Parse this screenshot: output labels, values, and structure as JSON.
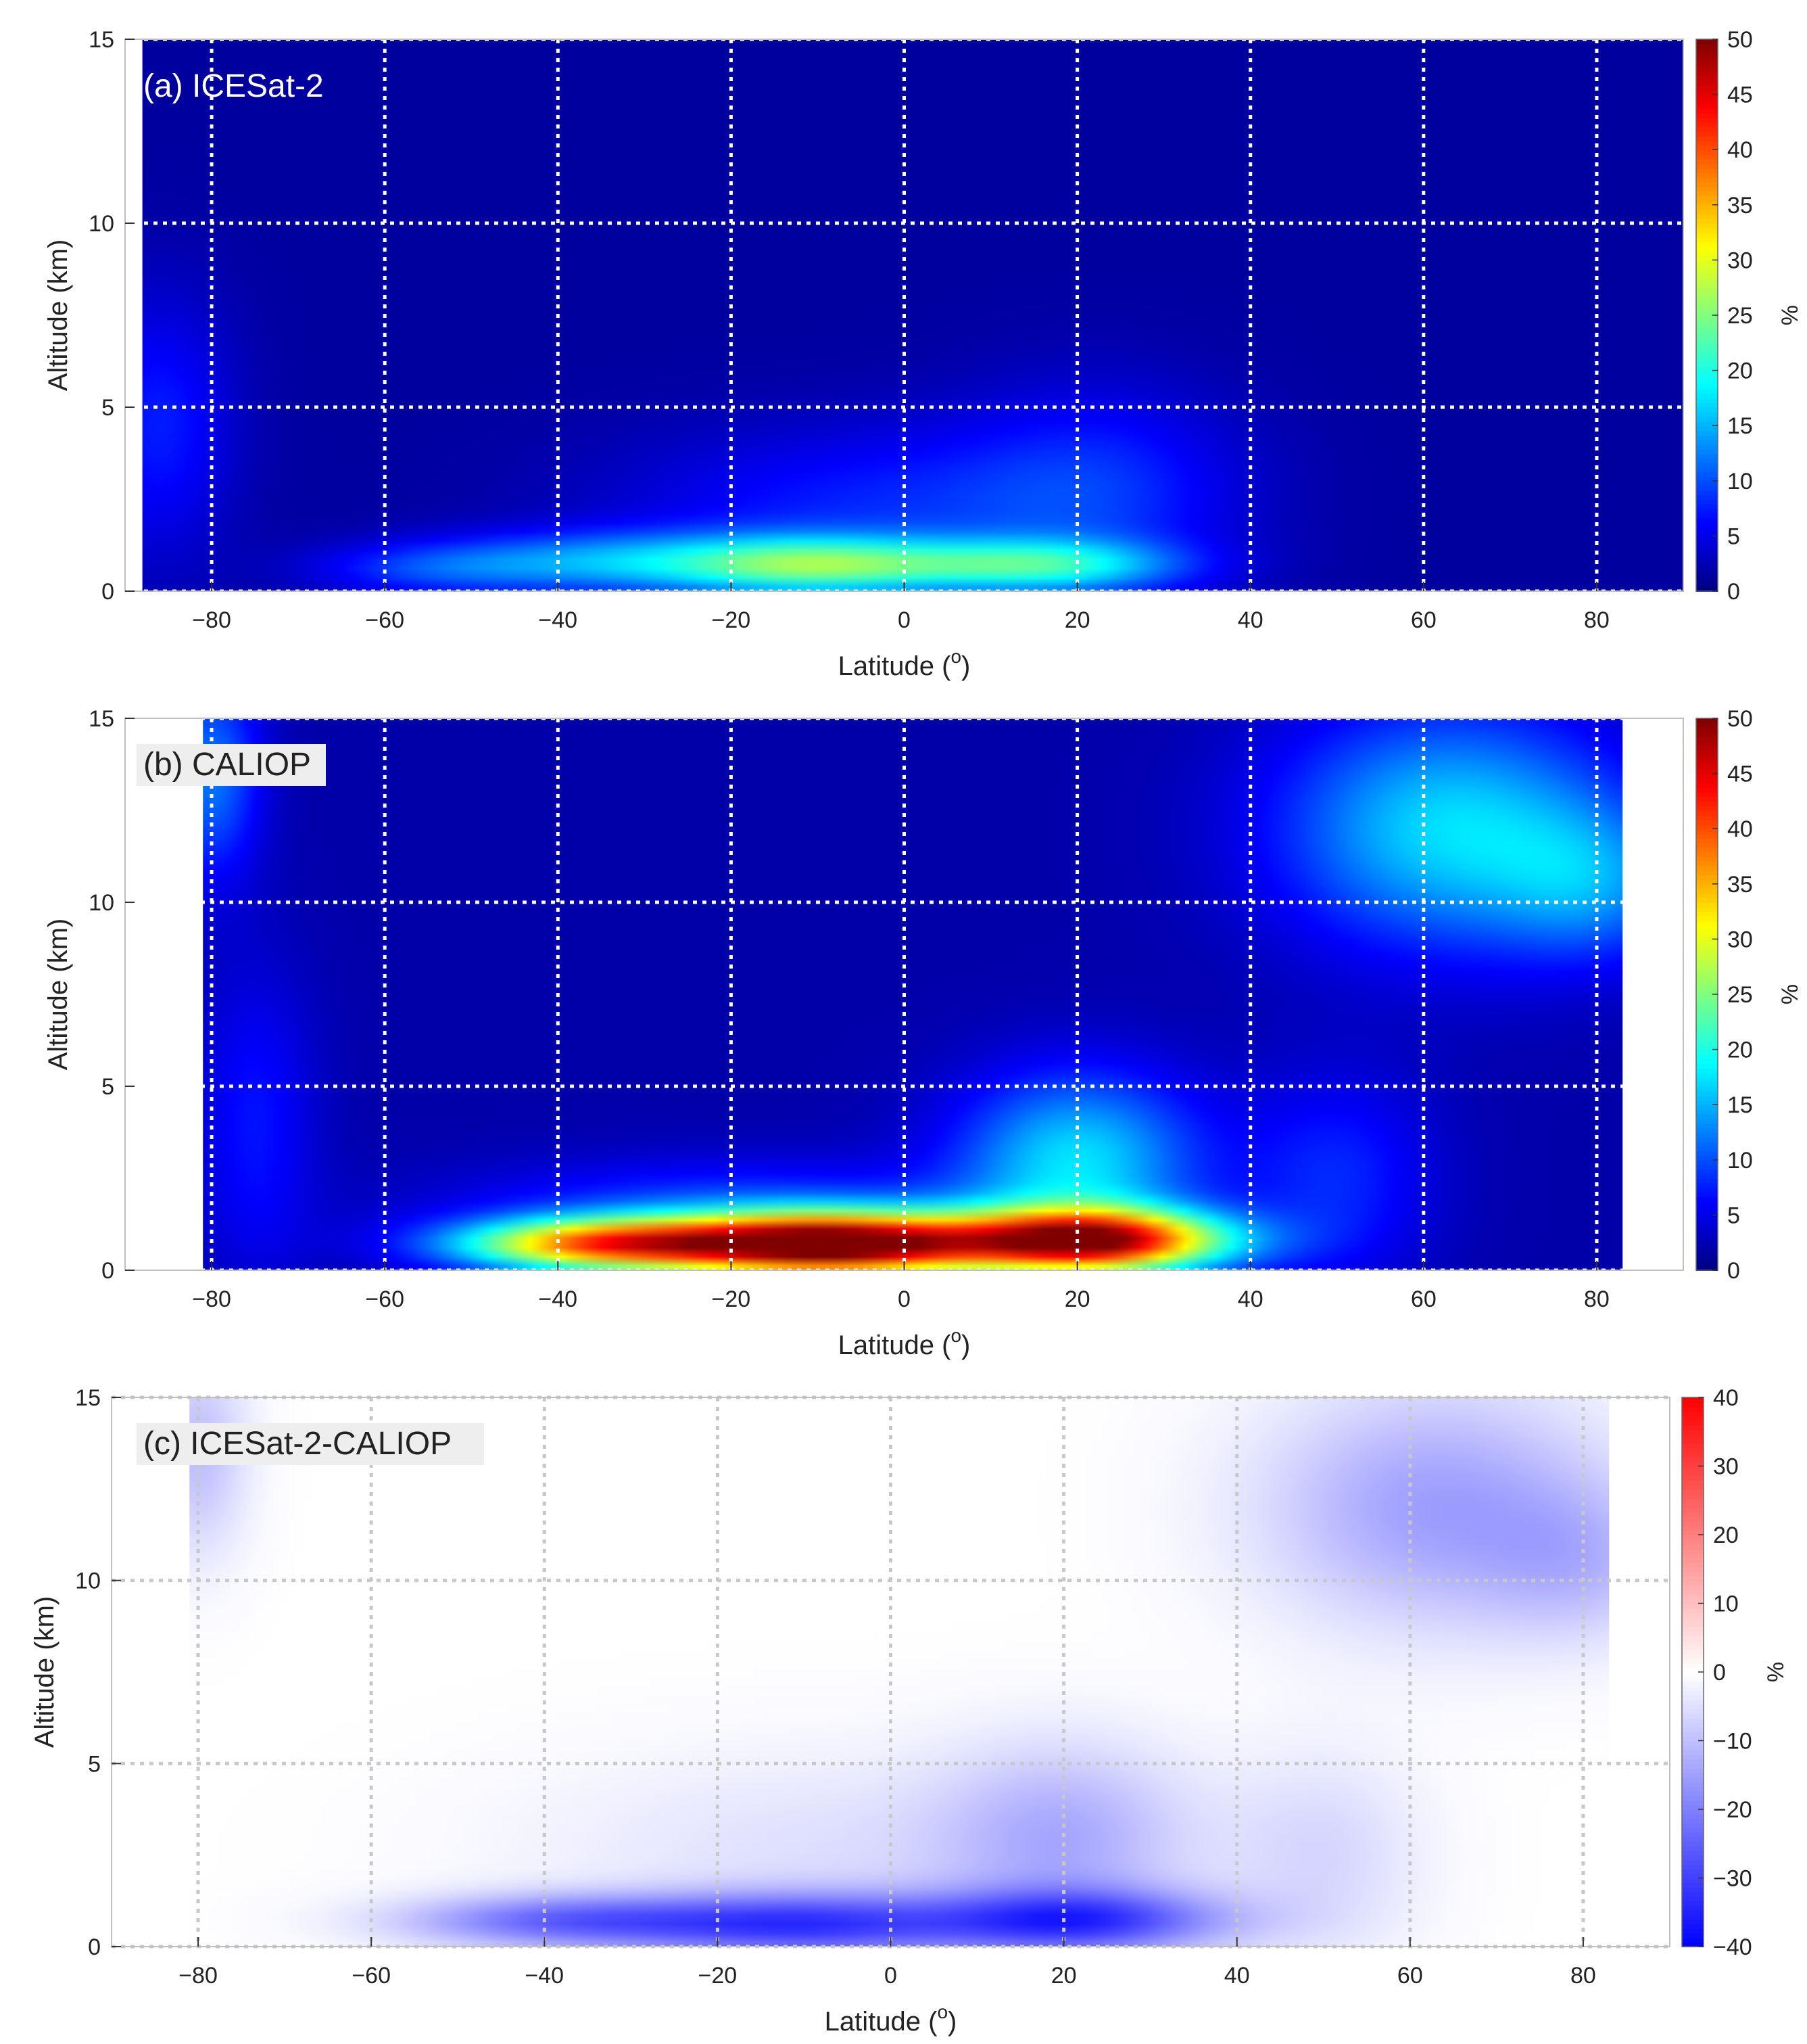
{
  "chart_data": [
    {
      "type": "heatmap",
      "panel_label": "(a) ICESat-2",
      "xlabel": "Latitude (",
      "xlabel_sup": "o",
      "xlabel_end": ")",
      "ylabel": "Altitude (km)",
      "colorbar_label": "%",
      "xlim": [
        -90,
        90
      ],
      "ylim": [
        0,
        15
      ],
      "data_xlim": [
        -88,
        90
      ],
      "x_ticks": [
        -80,
        -60,
        -40,
        -20,
        0,
        20,
        40,
        60,
        80
      ],
      "x_tick_labels": [
        "−80",
        "−60",
        "−40",
        "−20",
        "0",
        "20",
        "40",
        "60",
        "80"
      ],
      "y_ticks": [
        0,
        5,
        10,
        15
      ],
      "y_tick_labels": [
        "0",
        "5",
        "10",
        "15"
      ],
      "colormap": "jet",
      "clim": [
        0,
        50
      ],
      "colorbar_ticks": [
        0,
        5,
        10,
        15,
        20,
        25,
        30,
        35,
        40,
        45,
        50
      ],
      "colorbar_tick_labels": [
        "0",
        "5",
        "10",
        "15",
        "20",
        "25",
        "30",
        "35",
        "40",
        "45",
        "50"
      ],
      "grid": true,
      "label_box": false,
      "background": 1.5,
      "features": [
        {
          "lat": -10,
          "alt": 0.7,
          "sigma_lat": 12,
          "sigma_alt": 0.55,
          "value": 19
        },
        {
          "lat": 16,
          "alt": 0.7,
          "sigma_lat": 11,
          "sigma_alt": 0.5,
          "value": 15
        },
        {
          "lat": -35,
          "alt": 0.8,
          "sigma_lat": 14,
          "sigma_alt": 0.6,
          "value": 11
        },
        {
          "lat": -5,
          "alt": 2.2,
          "sigma_lat": 20,
          "sigma_alt": 1.6,
          "value": 6
        },
        {
          "lat": 22,
          "alt": 2.8,
          "sigma_lat": 12,
          "sigma_alt": 2.0,
          "value": 6
        },
        {
          "lat": -86,
          "alt": 4.5,
          "sigma_lat": 6,
          "sigma_alt": 2.5,
          "value": 6
        },
        {
          "lat": -55,
          "alt": 0.6,
          "sigma_lat": 10,
          "sigma_alt": 0.5,
          "value": 6
        }
      ]
    },
    {
      "type": "heatmap",
      "panel_label": "(b) CALIOP",
      "xlabel": "Latitude (",
      "xlabel_sup": "o",
      "xlabel_end": ")",
      "ylabel": "Altitude (km)",
      "colorbar_label": "%",
      "xlim": [
        -90,
        90
      ],
      "ylim": [
        0,
        15
      ],
      "data_xlim": [
        -81,
        83
      ],
      "x_ticks": [
        -80,
        -60,
        -40,
        -20,
        0,
        20,
        40,
        60,
        80
      ],
      "x_tick_labels": [
        "−80",
        "−60",
        "−40",
        "−20",
        "0",
        "20",
        "40",
        "60",
        "80"
      ],
      "y_ticks": [
        0,
        5,
        10,
        15
      ],
      "y_tick_labels": [
        "0",
        "5",
        "10",
        "15"
      ],
      "colormap": "jet",
      "clim": [
        0,
        50
      ],
      "colorbar_ticks": [
        0,
        5,
        10,
        15,
        20,
        25,
        30,
        35,
        40,
        45,
        50
      ],
      "colorbar_tick_labels": [
        "0",
        "5",
        "10",
        "15",
        "20",
        "25",
        "30",
        "35",
        "40",
        "45",
        "50"
      ],
      "grid": true,
      "label_box": true,
      "background": 2,
      "features": [
        {
          "lat": -8,
          "alt": 0.7,
          "sigma_lat": 13,
          "sigma_alt": 0.6,
          "value": 48
        },
        {
          "lat": 22,
          "alt": 0.8,
          "sigma_lat": 11,
          "sigma_alt": 0.6,
          "value": 42
        },
        {
          "lat": -35,
          "alt": 0.7,
          "sigma_lat": 12,
          "sigma_alt": 0.5,
          "value": 32
        },
        {
          "lat": 20,
          "alt": 3.0,
          "sigma_lat": 10,
          "sigma_alt": 1.7,
          "value": 15
        },
        {
          "lat": -20,
          "alt": 1.5,
          "sigma_lat": 22,
          "sigma_alt": 1.0,
          "value": 8
        },
        {
          "lat": 63,
          "alt": 12.0,
          "sigma_lat": 14,
          "sigma_alt": 2.3,
          "value": 15
        },
        {
          "lat": 80,
          "alt": 10.5,
          "sigma_lat": 8,
          "sigma_alt": 1.5,
          "value": 8
        },
        {
          "lat": -80,
          "alt": 13.5,
          "sigma_lat": 4,
          "sigma_alt": 2.0,
          "value": 10
        },
        {
          "lat": -75,
          "alt": 4.0,
          "sigma_lat": 5,
          "sigma_alt": 3.0,
          "value": 5
        },
        {
          "lat": 50,
          "alt": 2.5,
          "sigma_lat": 8,
          "sigma_alt": 2.0,
          "value": 6
        }
      ]
    },
    {
      "type": "heatmap",
      "panel_label": "(c) ICESat-2-CALIOP",
      "xlabel": "Latitude (",
      "xlabel_sup": "o",
      "xlabel_end": ")",
      "ylabel": "Altitude (km)",
      "colorbar_label": "%",
      "xlim": [
        -90,
        90
      ],
      "ylim": [
        0,
        15
      ],
      "data_xlim": [
        -81,
        83
      ],
      "x_ticks": [
        -80,
        -60,
        -40,
        -20,
        0,
        20,
        40,
        60,
        80
      ],
      "x_tick_labels": [
        "−80",
        "−60",
        "−40",
        "−20",
        "0",
        "20",
        "40",
        "60",
        "80"
      ],
      "y_ticks": [
        0,
        5,
        10,
        15
      ],
      "y_tick_labels": [
        "0",
        "5",
        "10",
        "15"
      ],
      "colormap": "bwr",
      "clim": [
        -40,
        40
      ],
      "colorbar_ticks": [
        -40,
        -30,
        -20,
        -10,
        0,
        10,
        20,
        30,
        40
      ],
      "colorbar_tick_labels": [
        "−40",
        "−30",
        "−20",
        "−10",
        "0",
        "10",
        "20",
        "30",
        "40"
      ],
      "grid": true,
      "label_box": true,
      "background": 0,
      "features": [
        {
          "lat": -10,
          "alt": 0.6,
          "sigma_lat": 14,
          "sigma_alt": 0.6,
          "value": -28
        },
        {
          "lat": 22,
          "alt": 0.7,
          "sigma_lat": 12,
          "sigma_alt": 0.6,
          "value": -28
        },
        {
          "lat": -38,
          "alt": 0.7,
          "sigma_lat": 13,
          "sigma_alt": 0.5,
          "value": -22
        },
        {
          "lat": 20,
          "alt": 3.0,
          "sigma_lat": 10,
          "sigma_alt": 1.8,
          "value": -11
        },
        {
          "lat": 63,
          "alt": 12.0,
          "sigma_lat": 14,
          "sigma_alt": 2.3,
          "value": -15
        },
        {
          "lat": 80,
          "alt": 10.5,
          "sigma_lat": 8,
          "sigma_alt": 1.5,
          "value": -8
        },
        {
          "lat": -80,
          "alt": 13.5,
          "sigma_lat": 4,
          "sigma_alt": 2.0,
          "value": -10
        },
        {
          "lat": 50,
          "alt": 2.5,
          "sigma_lat": 8,
          "sigma_alt": 2.0,
          "value": -6
        },
        {
          "lat": -5,
          "alt": 2.5,
          "sigma_lat": 25,
          "sigma_alt": 2.0,
          "value": -5
        }
      ]
    }
  ]
}
